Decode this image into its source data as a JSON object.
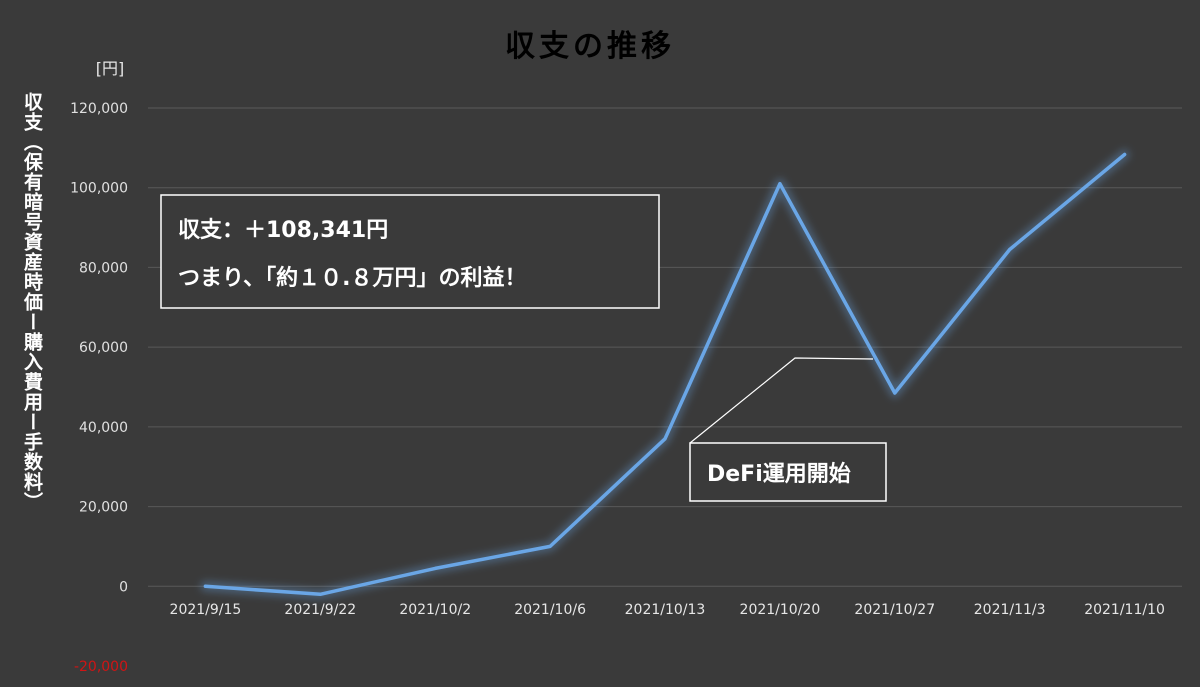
{
  "chart_data": {
    "type": "line",
    "title": "収支の推移",
    "unit_label": "[円]",
    "ylabel": "収支（保有暗号資産時価ー購入費用ー手数料）",
    "categories": [
      "2021/9/15",
      "2021/9/22",
      "2021/10/2",
      "2021/10/6",
      "2021/10/13",
      "2021/10/20",
      "2021/10/27",
      "2021/11/3",
      "2021/11/10"
    ],
    "series": [
      {
        "values": [
          0,
          -2000,
          4500,
          10000,
          37000,
          101000,
          48500,
          84500,
          108341
        ]
      }
    ],
    "ylim": [
      -20000,
      120000
    ],
    "yticks": [
      -20000,
      0,
      20000,
      40000,
      60000,
      80000,
      100000,
      120000
    ],
    "ytick_labels": [
      "-20,000",
      "0",
      "20,000",
      "40,000",
      "60,000",
      "80,000",
      "100,000",
      "120,000"
    ],
    "grid": true,
    "line_color": "#6aa6e6",
    "negative_tick_color": "#d01414",
    "annotations": [
      {
        "kind": "summary",
        "lines": [
          "収支：＋108,341円",
          "つまり、「約１０.８万円」の利益！"
        ]
      },
      {
        "kind": "callout",
        "text": "DeFi運用開始",
        "points_to": "2021/10/13"
      }
    ]
  }
}
